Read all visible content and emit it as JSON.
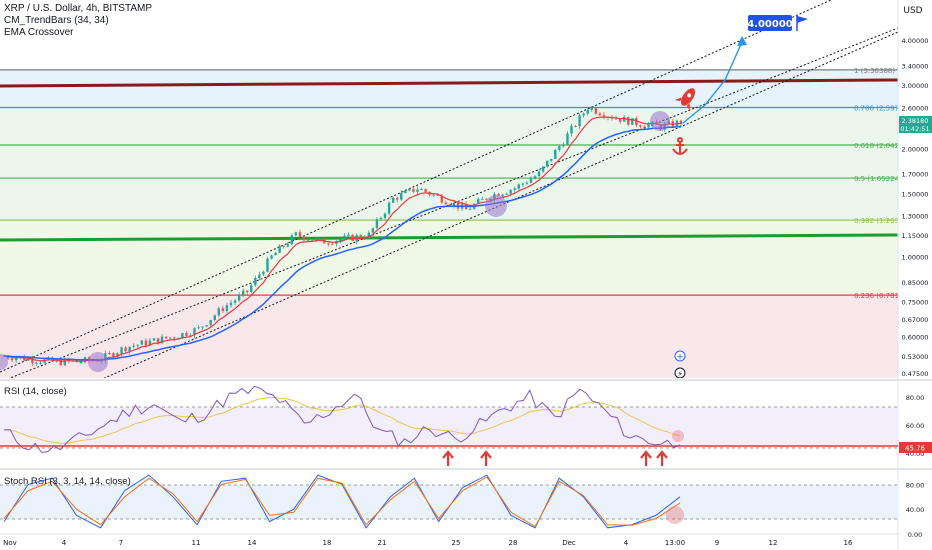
{
  "header": {
    "symbol_line": "XRP / U.S. Dollar, 4h, BITSTAMP",
    "indicator_1": "CM_TrendBars (34, 34)",
    "indicator_2": "EMA Crossover"
  },
  "price_axis": {
    "currency": "USD",
    "scale": "log",
    "ticks": [
      "4.00000",
      "3.40000",
      "3.00000",
      "2.60000",
      "2.30000",
      "2.00000",
      "1.70000",
      "1.50000",
      "1.30000",
      "1.15000",
      "1.00000",
      "0.85000",
      "0.75000",
      "0.67000",
      "0.60000",
      "0.53000",
      "0.47500"
    ],
    "current_price_label": "2.38180",
    "current_time_label": "01:42:51"
  },
  "fibonacci": [
    {
      "label": "1 (3.30388)",
      "price": 3.30388,
      "color": "#787b86"
    },
    {
      "label": "0.786 (2.59745)",
      "price": 2.59745,
      "color": "#2196f3"
    },
    {
      "label": "0.618 (2.04287)",
      "price": 2.04287,
      "color": "#4caf50"
    },
    {
      "label": "0.5 (1.65324)",
      "price": 1.65324,
      "color": "#4caf50"
    },
    {
      "label": "0.382 (1.26382)",
      "price": 1.26382,
      "color": "#8bc34a"
    },
    {
      "label": "0.236 (0.78186)",
      "price": 0.78186,
      "color": "#f23645"
    }
  ],
  "annotations": {
    "target_label": "4.00000",
    "target_price": 4.0,
    "resistance_color": "#8b1a1a",
    "support_color": "#1b9e2e"
  },
  "time_axis": {
    "labels": [
      "Nov",
      "4",
      "7",
      "11",
      "14",
      "18",
      "21",
      "25",
      "28",
      "Dec",
      "4",
      "13:00",
      "9",
      "12",
      "16"
    ]
  },
  "rsi": {
    "title": "RSI (14, close)",
    "ticks": [
      "80.00",
      "60.00",
      "40.00"
    ],
    "current_value": "45.76",
    "line_color": "#7e57c2",
    "ma_color": "#e6c84a"
  },
  "stoch": {
    "title": "Stoch RSI (3, 3, 14, 14, close)",
    "ticks": [
      "80.00",
      "40.00",
      "0.00"
    ],
    "k_color": "#2962ff",
    "d_color": "#ff6d00"
  },
  "chart_data": [
    {
      "type": "line",
      "title": "XRP / U.S. Dollar, 4h, BITSTAMP",
      "scale": "log",
      "ylim": [
        0.45,
        4.6
      ],
      "x_labels": [
        "Nov",
        "4",
        "7",
        "11",
        "14",
        "18",
        "21",
        "25",
        "28",
        "Dec",
        "4",
        "13:00",
        "9",
        "12",
        "16"
      ],
      "series": [
        {
          "name": "Price (approx. close)",
          "values": [
            0.53,
            0.52,
            0.51,
            0.51,
            0.52,
            0.56,
            0.58,
            0.6,
            0.63,
            0.72,
            0.8,
            1.0,
            1.15,
            1.1,
            1.12,
            1.15,
            1.45,
            1.55,
            1.45,
            1.35,
            1.48,
            1.55,
            1.7,
            2.1,
            2.6,
            2.45,
            2.35,
            2.3,
            2.38
          ]
        }
      ]
    },
    {
      "type": "line",
      "title": "RSI (14, close)",
      "ylim": [
        30,
        90
      ],
      "series": [
        {
          "name": "RSI",
          "values": [
            55,
            45,
            42,
            50,
            60,
            70,
            75,
            62,
            68,
            80,
            85,
            78,
            60,
            70,
            82,
            55,
            48,
            58,
            50,
            60,
            72,
            80,
            65,
            85,
            70,
            52,
            48,
            45.76
          ]
        }
      ]
    },
    {
      "type": "line",
      "title": "Stoch RSI (3, 3, 14, 14, close)",
      "ylim": [
        0,
        100
      ],
      "series": [
        {
          "name": "K",
          "values": [
            20,
            80,
            90,
            30,
            10,
            70,
            95,
            60,
            15,
            85,
            90,
            20,
            40,
            95,
            80,
            10,
            60,
            90,
            20,
            75,
            95,
            30,
            10,
            90,
            60,
            10,
            15,
            30,
            60
          ]
        },
        {
          "name": "D",
          "values": [
            25,
            70,
            85,
            40,
            15,
            60,
            90,
            65,
            20,
            80,
            88,
            30,
            35,
            90,
            82,
            15,
            55,
            85,
            25,
            70,
            92,
            35,
            12,
            85,
            62,
            15,
            14,
            25,
            50
          ]
        }
      ]
    }
  ]
}
